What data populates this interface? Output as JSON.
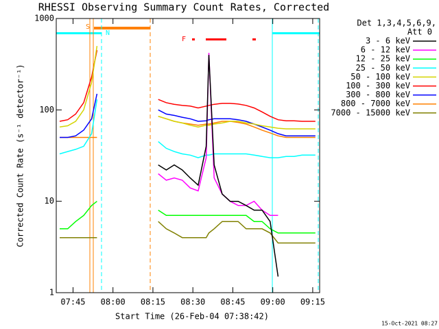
{
  "chart_data": {
    "type": "line",
    "title": "RHESSI Observing Summary Count Rates, Corrected",
    "xlabel": "Start Time (26-Feb-04 07:38:42)",
    "ylabel": "Corrected Count Rate (s⁻¹ detector⁻¹)",
    "legend_header": [
      "Det 1,3,4,5,6,9,",
      "Att 0"
    ],
    "footer": "15-Oct-2021 08:27",
    "flags": [
      "S",
      "N",
      "F"
    ],
    "log_y": true,
    "xlim": [
      "07:38:42",
      "09:17:36"
    ],
    "xticks": [
      "07:45",
      "08:00",
      "08:15",
      "08:30",
      "08:45",
      "09:00",
      "09:15"
    ],
    "ylim": [
      1,
      1000
    ],
    "yticks": [
      1,
      10,
      100,
      1000
    ],
    "x": [
      "07:40",
      "07:43",
      "07:46",
      "07:49",
      "07:52",
      "07:54",
      "08:00",
      "08:17",
      "08:20",
      "08:23",
      "08:26",
      "08:29",
      "08:32",
      "08:35",
      "08:36",
      "08:38",
      "08:41",
      "08:44",
      "08:47",
      "08:50",
      "08:53",
      "08:56",
      "08:59",
      "09:02",
      "09:05",
      "09:08",
      "09:11",
      "09:14",
      "09:16"
    ],
    "series": [
      {
        "name": "3 - 6 keV",
        "color": "#000000",
        "values": [
          null,
          null,
          null,
          null,
          null,
          null,
          null,
          25,
          22,
          25,
          22,
          18,
          15,
          40,
          400,
          25,
          12,
          10,
          10,
          9,
          8,
          8,
          6,
          1.5,
          null,
          null,
          null,
          null,
          null
        ]
      },
      {
        "name": "6 - 12 keV",
        "color": "#ff00ff",
        "values": [
          null,
          null,
          null,
          null,
          null,
          null,
          null,
          20,
          17,
          18,
          17,
          14,
          13,
          30,
          420,
          18,
          12,
          10,
          9,
          9,
          10,
          8,
          7,
          7,
          null,
          null,
          null,
          null,
          null
        ]
      },
      {
        "name": "12 - 25 keV",
        "color": "#00ff00",
        "values": [
          5,
          5,
          6,
          7,
          9,
          10,
          null,
          8,
          7,
          7,
          7,
          7,
          7,
          7,
          7,
          7,
          7,
          7,
          7,
          7,
          6,
          6,
          5,
          4.5,
          4.5,
          4.5,
          4.5,
          4.5,
          4.5
        ]
      },
      {
        "name": "25 - 50 keV",
        "color": "#00ffff",
        "values": [
          33,
          35,
          37,
          40,
          55,
          130,
          null,
          45,
          38,
          35,
          33,
          32,
          30,
          32,
          32,
          33,
          33,
          33,
          33,
          33,
          32,
          31,
          30,
          30,
          31,
          31,
          32,
          32,
          32
        ]
      },
      {
        "name": "50 - 100 keV",
        "color": "#d4d400",
        "values": [
          65,
          67,
          75,
          100,
          200,
          500,
          null,
          85,
          80,
          75,
          72,
          68,
          65,
          68,
          68,
          70,
          72,
          75,
          75,
          72,
          70,
          67,
          65,
          63,
          62,
          62,
          62,
          62,
          62
        ]
      },
      {
        "name": "100 - 300 keV",
        "color": "#ff0000",
        "values": [
          75,
          78,
          90,
          120,
          230,
          450,
          null,
          130,
          120,
          115,
          112,
          110,
          105,
          110,
          112,
          115,
          118,
          118,
          116,
          112,
          105,
          95,
          85,
          78,
          76,
          76,
          75,
          75,
          75
        ]
      },
      {
        "name": "300 - 800 keV",
        "color": "#0000ff",
        "values": [
          50,
          50,
          52,
          60,
          80,
          150,
          null,
          100,
          90,
          87,
          83,
          80,
          75,
          76,
          78,
          80,
          80,
          80,
          78,
          75,
          70,
          65,
          60,
          55,
          52,
          52,
          52,
          52,
          52
        ]
      },
      {
        "name": "800 - 7000 keV",
        "color": "#ff8000",
        "values": [
          50,
          50,
          50,
          50,
          50,
          50,
          null,
          85,
          80,
          75,
          72,
          70,
          68,
          70,
          70,
          72,
          75,
          75,
          73,
          70,
          65,
          60,
          56,
          52,
          50,
          50,
          50,
          50,
          50
        ]
      },
      {
        "name": "7000 - 15000 keV",
        "color": "#808000",
        "values": [
          4,
          4,
          4,
          4,
          4,
          4,
          null,
          6,
          5,
          4.5,
          4,
          4,
          4,
          4,
          4.5,
          5,
          6,
          6,
          6,
          5,
          5,
          5,
          4.5,
          3.5,
          3.5,
          3.5,
          3.5,
          3.5,
          3.5
        ]
      }
    ]
  }
}
